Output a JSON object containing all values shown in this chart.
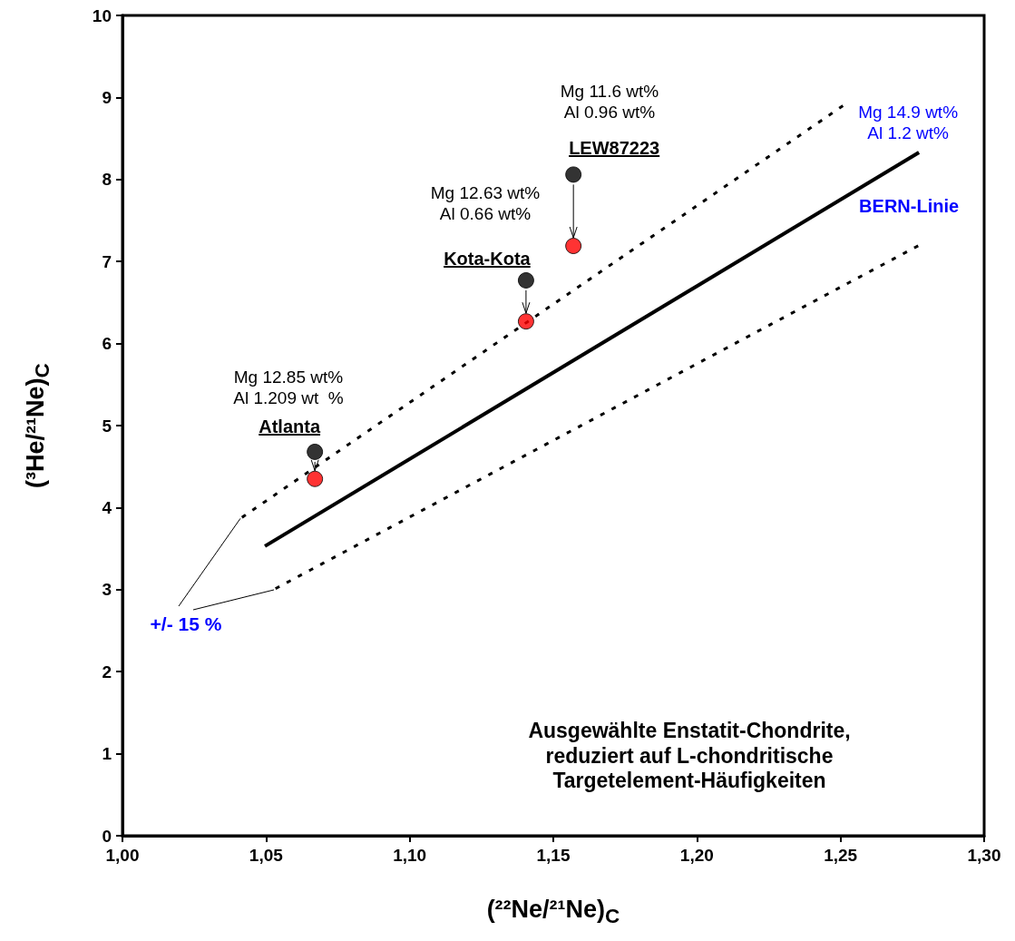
{
  "chart_data": {
    "type": "scatter",
    "xlabel": "(²²Ne/²¹Ne)$_{C}$",
    "ylabel": "(³He/²¹Ne)$_{C}$",
    "xlim": [
      1.0,
      1.3
    ],
    "xticks": [
      {
        "value": 1.0,
        "label": "1,00"
      },
      {
        "value": 1.05,
        "label": "1,05"
      },
      {
        "value": 1.1,
        "label": "1,10"
      },
      {
        "value": 1.15,
        "label": "1,15"
      },
      {
        "value": 1.2,
        "label": "1,20"
      },
      {
        "value": 1.25,
        "label": "1,25"
      },
      {
        "value": 1.3,
        "label": "1,30"
      }
    ],
    "ylim": [
      0,
      10
    ],
    "yticks": [
      0,
      1,
      2,
      3,
      4,
      5,
      6,
      7,
      8,
      9,
      10
    ],
    "grid": false,
    "legend": false,
    "marker": "circle",
    "series": [
      {
        "type": "line",
        "name": "BERN-Linie",
        "color": "#000000",
        "marker": "none",
        "line_style": "solid",
        "x": [
          1.0496,
          1.2773
        ],
        "values": [
          3.53,
          8.33
        ]
      },
      {
        "type": "line",
        "color": "#000000",
        "marker": "none",
        "line_style": "dotted",
        "x": [
          1.042,
          1.2517
        ],
        "values": [
          3.89,
          8.92
        ]
      },
      {
        "type": "line",
        "color": "#000000",
        "marker": "none",
        "line_style": "dotted",
        "x": [
          1.0537,
          1.2785
        ],
        "values": [
          3.02,
          7.22
        ]
      },
      {
        "type": "scatter",
        "color": "#000000",
        "x": [
          1.067,
          1.1405,
          1.157
        ],
        "values": [
          4.68,
          6.77,
          8.06
        ]
      },
      {
        "type": "scatter",
        "color": "#ff0000",
        "x": [
          1.067,
          1.1405,
          1.157
        ],
        "values": [
          4.35,
          6.27,
          7.19
        ]
      }
    ],
    "annotations": [
      "Mg 12.85 wt%\nAl 1.209 wt  %",
      {
        "text": "Atlanta",
        "x": 1.067,
        "y": 4.68
      },
      "Mg 12.63 wt%\nAl 0.66 wt%",
      {
        "text": "Kota-Kota",
        "x": 1.1405,
        "y": 6.77
      },
      "Mg 11.6 wt%\nAl 0.96 wt%",
      {
        "text": "LEW87223",
        "x": 1.157,
        "y": 8.06
      },
      {
        "text": "Mg 14.9 wt%\nAl 1.2 wt%",
        "x": 1.2773,
        "y": 8.33
      },
      {
        "text": "+/- 15 %",
        "x": 1.042,
        "y": 3.89
      },
      "Ausgewählte Enstatit-Chondrite,\nreduziert auf L-chondritische\nTargetelement-Häufigkeiten"
    ]
  }
}
